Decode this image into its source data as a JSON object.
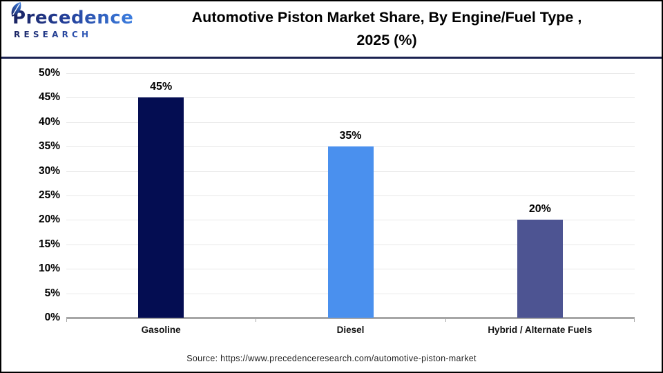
{
  "header": {
    "logo": {
      "name": "Precedence",
      "word": "RESEARCH"
    },
    "title_line1": "Automotive Piston Market Share, By Engine/Fuel Type ,",
    "title_line2": "2025 (%)"
  },
  "chart_data": {
    "type": "bar",
    "title": "Automotive Piston Market Share, By Engine/Fuel Type , 2025 (%)",
    "categories": [
      "Gasoline",
      "Diesel",
      "Hybrid / Alternate Fuels"
    ],
    "values": [
      45,
      35,
      20
    ],
    "value_labels": [
      "45%",
      "35%",
      "20%"
    ],
    "bar_colors": [
      "#040d52",
      "#4a90ee",
      "#4d5492"
    ],
    "xlabel": "",
    "ylabel": "",
    "ylim": [
      0,
      50
    ],
    "yticks": [
      0,
      5,
      10,
      15,
      20,
      25,
      30,
      35,
      40,
      45,
      50
    ],
    "ytick_labels": [
      "0%",
      "5%",
      "10%",
      "15%",
      "20%",
      "25%",
      "30%",
      "35%",
      "40%",
      "45%",
      "50%"
    ],
    "grid": true,
    "legend": false
  },
  "footer": {
    "source": "Source: https://www.precedenceresearch.com/automotive-piston-market"
  },
  "colors": {
    "bar_gasoline": "#040d52",
    "bar_diesel": "#4a90ee",
    "bar_hybrid_alternate_fuels": "#4d5492",
    "header_rule": "#1a2150",
    "gridline": "#e8e8e8",
    "axis_line": "#a6a6a6",
    "logo_navy": "#1a2361",
    "logo_blue": "#3d7fe0",
    "title_text": "#000000"
  }
}
